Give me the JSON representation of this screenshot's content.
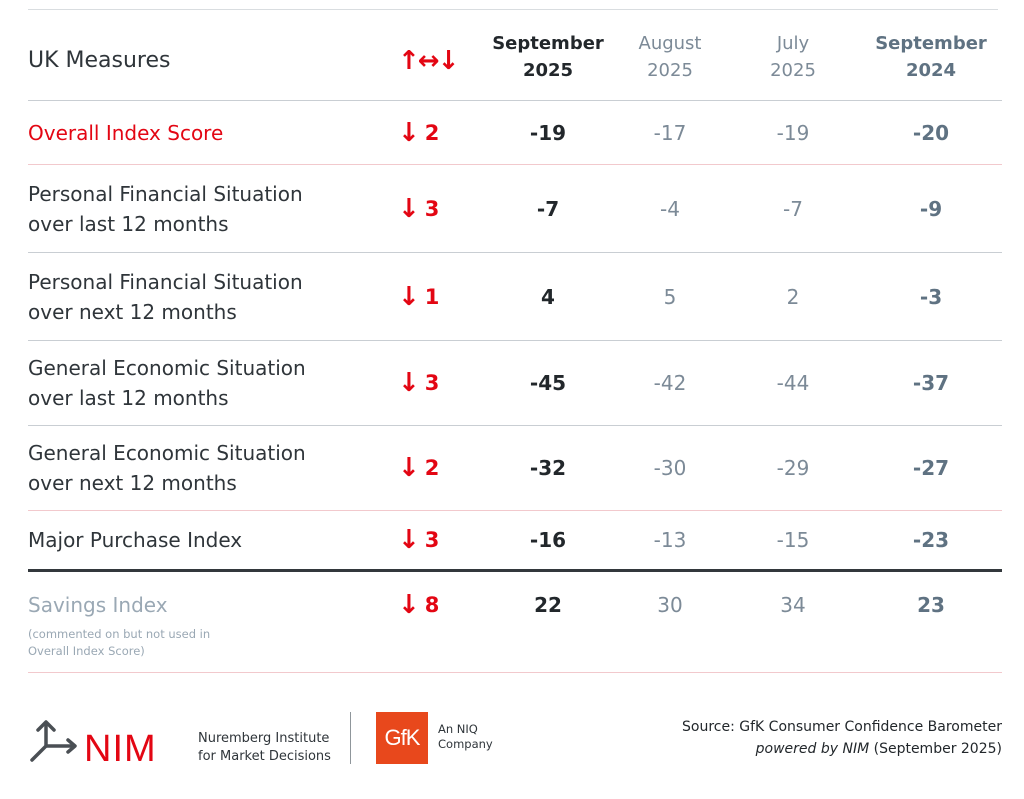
{
  "header": {
    "title": "UK Measures",
    "change_symbol": "↑↔↓",
    "col1": "September\n2025",
    "col2": "August\n2025",
    "col3": "July\n2025",
    "col4": "September\n2024"
  },
  "rows": [
    {
      "measure": "Overall Index Score",
      "direction": "down",
      "change": "2",
      "sep2025": "-19",
      "aug2025": "-17",
      "jul2025": "-19",
      "sep2024": "-20"
    },
    {
      "measure": "Personal Financial Situation over last 12 months",
      "direction": "down",
      "change": "3",
      "sep2025": "-7",
      "aug2025": "-4",
      "jul2025": "-7",
      "sep2024": "-9"
    },
    {
      "measure": "Personal Financial Situation over next 12 months",
      "direction": "down",
      "change": "1",
      "sep2025": "4",
      "aug2025": "5",
      "jul2025": "2",
      "sep2024": "-3"
    },
    {
      "measure": "General Economic Situation over last 12 months",
      "direction": "down",
      "change": "3",
      "sep2025": "-45",
      "aug2025": "-42",
      "jul2025": "-44",
      "sep2024": "-37"
    },
    {
      "measure": "General Economic Situation over next 12 months",
      "direction": "down",
      "change": "2",
      "sep2025": "-32",
      "aug2025": "-30",
      "jul2025": "-29",
      "sep2024": "-27"
    },
    {
      "measure": "Major Purchase Index",
      "direction": "down",
      "change": "3",
      "sep2025": "-16",
      "aug2025": "-13",
      "jul2025": "-15",
      "sep2024": "-23"
    },
    {
      "measure": "Savings Index",
      "direction": "down",
      "change": "8",
      "sep2025": "22",
      "aug2025": "30",
      "jul2025": "34",
      "sep2024": "23"
    }
  ],
  "savings_note": "(commented on but not used in Overall Index Score)",
  "footer": {
    "nim_logo_text": "NIM",
    "nim_name": "Nuremberg Institute for Market Decisions",
    "gfk_logo_text": "GfK",
    "gfk_tagline": "An NIQ Company",
    "source_line": "Source: GfK Consumer Confidence Barometer",
    "powered_by": "powered by NIM",
    "powered_date": "(September 2025)"
  },
  "colors": {
    "accent_red": "#e30613",
    "muted_blue_grey": "#7c8a97",
    "gfk_orange": "#e8481c"
  }
}
